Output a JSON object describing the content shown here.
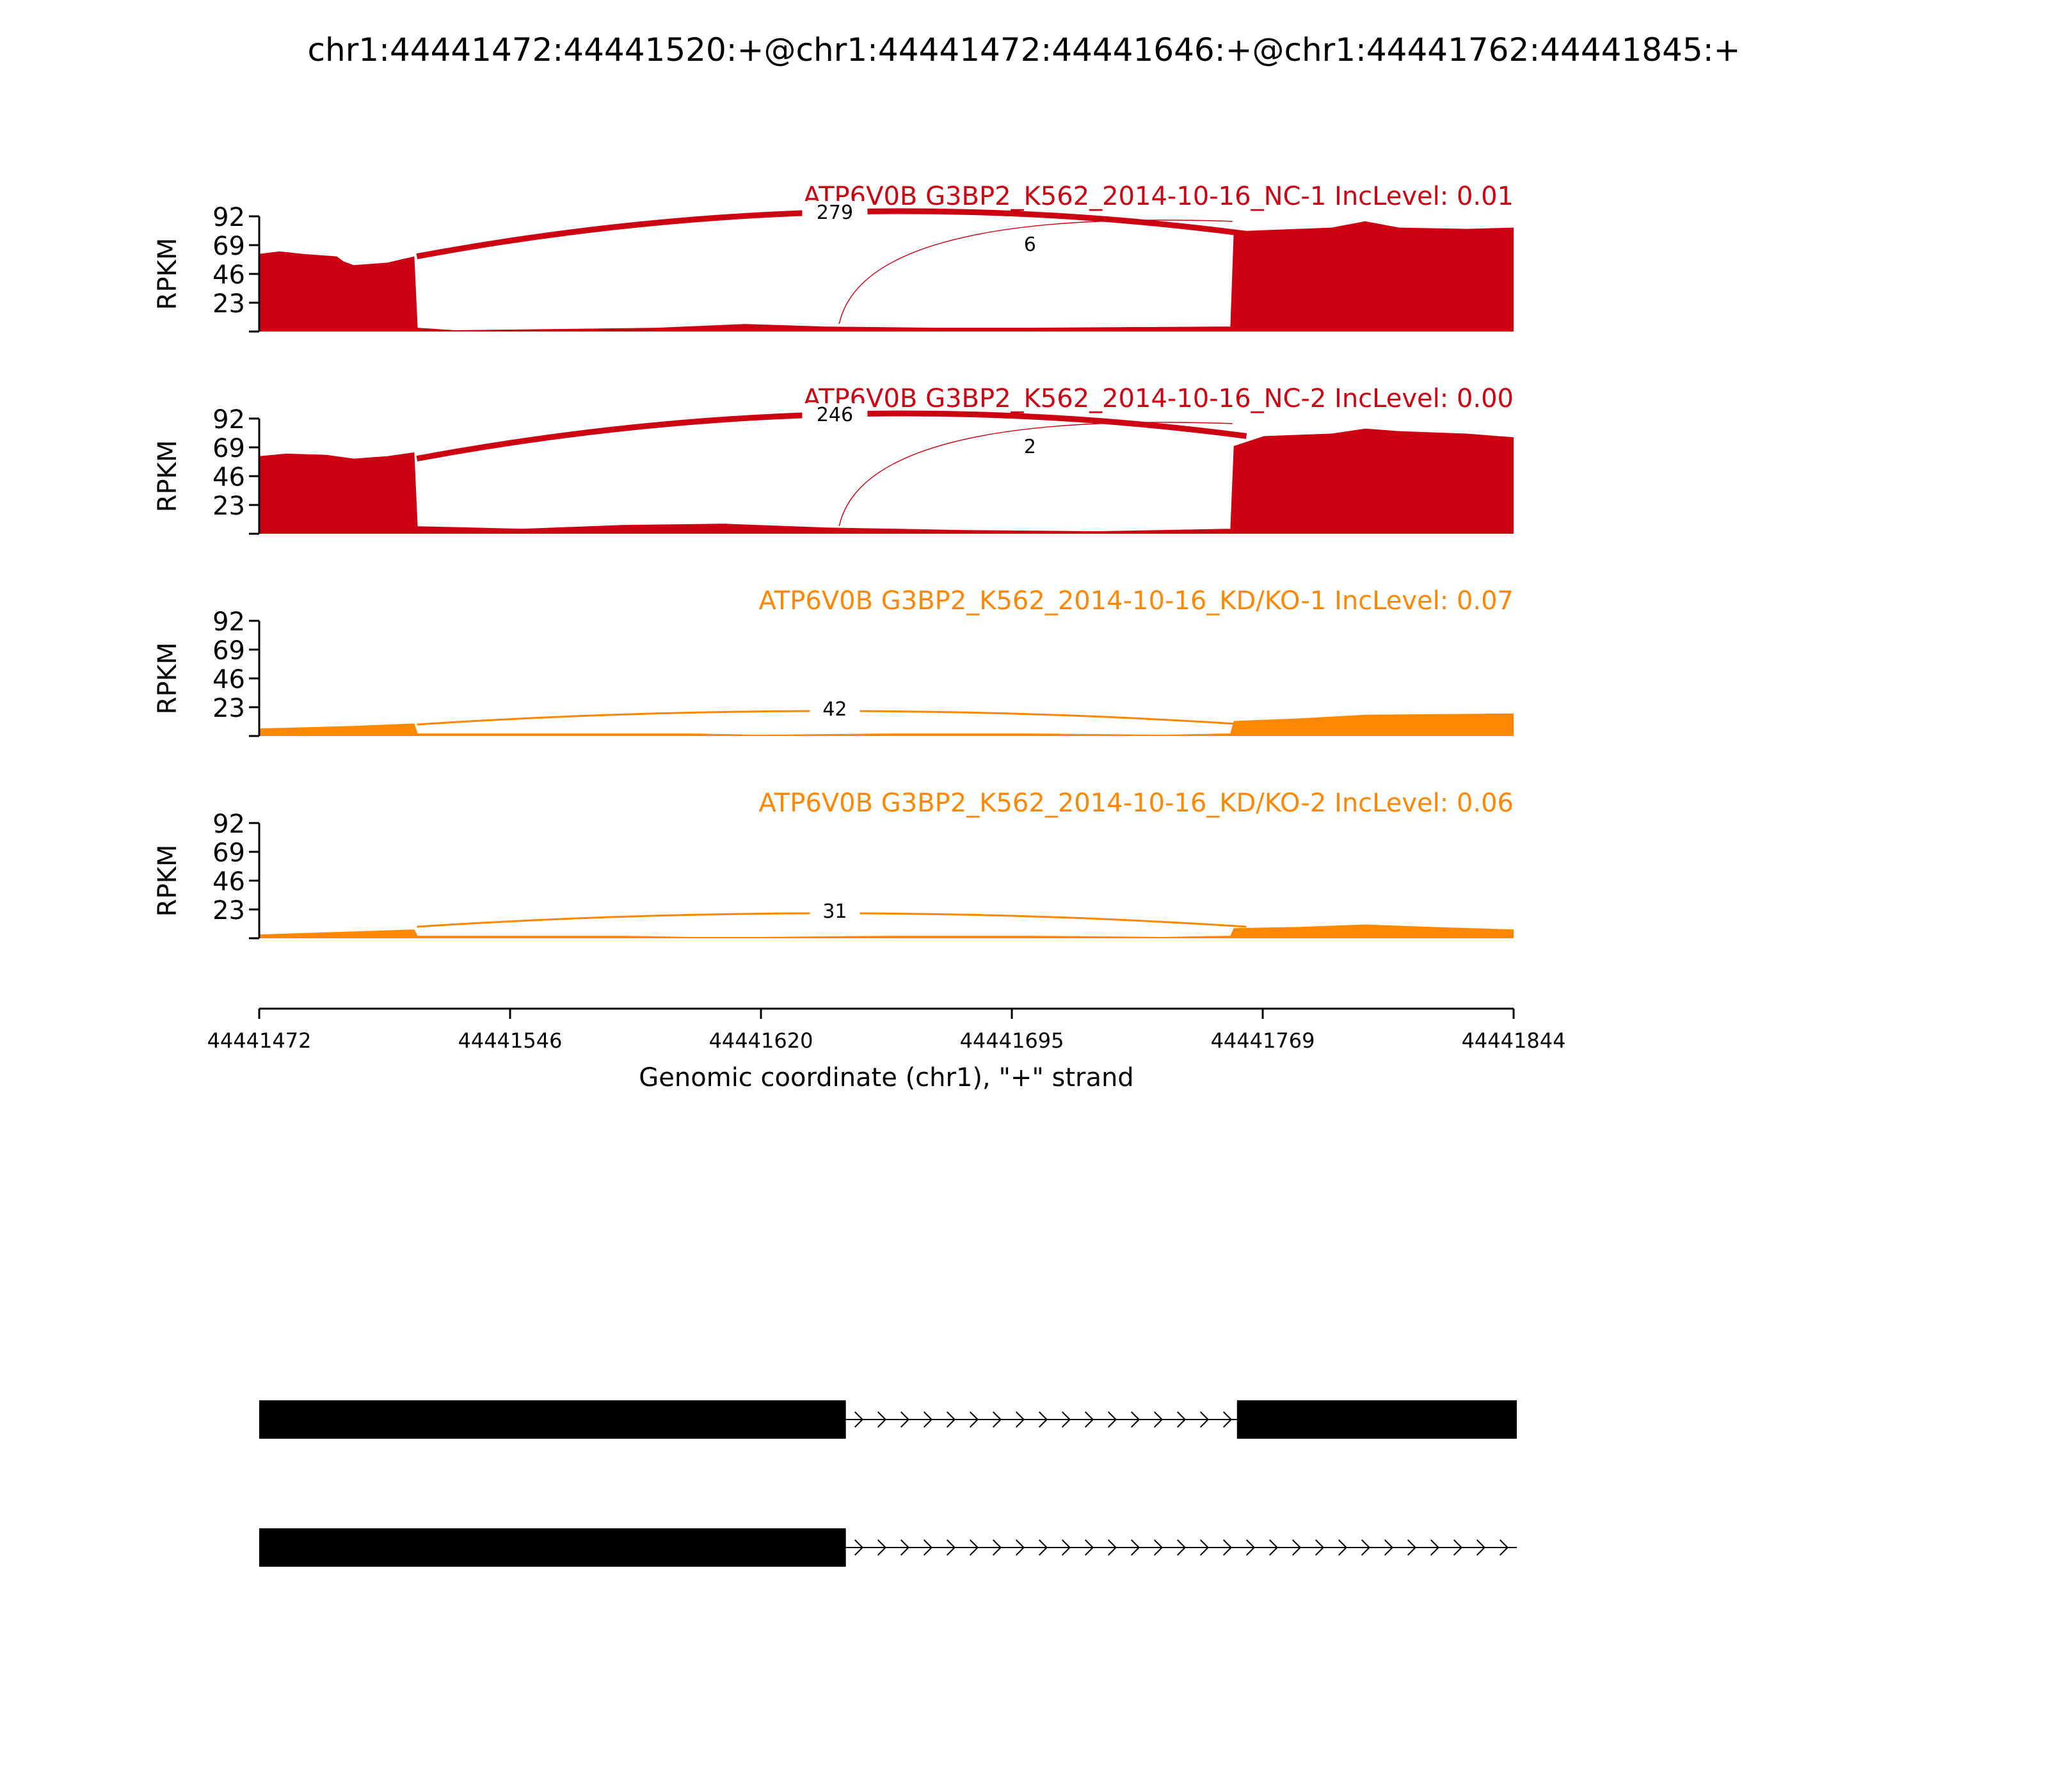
{
  "title": "chr1:44441472:44441520:+@chr1:44441472:44441646:+@chr1:44441762:44441845:+",
  "chart_data": {
    "type": "area",
    "subtype": "sashimi",
    "title": "chr1:44441472:44441520:+@chr1:44441472:44441646:+@chr1:44441762:44441845:+",
    "xlabel": "Genomic coordinate (chr1), \"+\" strand",
    "ylabel": "RPKM",
    "xlim": [
      44441472,
      44441844
    ],
    "x_ticks": [
      "44441472",
      "44441546",
      "44441620",
      "44441695",
      "44441769",
      "44441844"
    ],
    "y_ticks": [
      "23",
      "46",
      "69",
      "92"
    ],
    "ylim": [
      0,
      92
    ],
    "grid": false,
    "series": [
      {
        "name": "ATP6V0B G3BP2_K562_2014-10-16_NC-1 IncLevel: 0.01",
        "color": "#cc0011",
        "coverage": [
          [
            44441472,
            62
          ],
          [
            44441478,
            64
          ],
          [
            44441485,
            62
          ],
          [
            44441495,
            60
          ],
          [
            44441497,
            56
          ],
          [
            44441500,
            53
          ],
          [
            44441510,
            55
          ],
          [
            44441518,
            60
          ],
          [
            44441519,
            3
          ],
          [
            44441530,
            1
          ],
          [
            44441560,
            2
          ],
          [
            44441590,
            3
          ],
          [
            44441616,
            6
          ],
          [
            44441640,
            4
          ],
          [
            44441672,
            3
          ],
          [
            44441700,
            3
          ],
          [
            44441760,
            4
          ],
          [
            44441761,
            80
          ],
          [
            44441780,
            82
          ],
          [
            44441790,
            83
          ],
          [
            44441800,
            88
          ],
          [
            44441810,
            83
          ],
          [
            44441830,
            82
          ],
          [
            44441844,
            83
          ]
        ],
        "junctions": [
          {
            "start": 44441518,
            "end": 44441764,
            "reads": "279"
          },
          {
            "start": 44441644,
            "end": 44441761,
            "reads": "6"
          }
        ]
      },
      {
        "name": "ATP6V0B G3BP2_K562_2014-10-16_NC-2 IncLevel: 0.00",
        "color": "#cc0011",
        "coverage": [
          [
            44441472,
            62
          ],
          [
            44441480,
            64
          ],
          [
            44441492,
            63
          ],
          [
            44441500,
            60
          ],
          [
            44441510,
            62
          ],
          [
            44441518,
            65
          ],
          [
            44441519,
            6
          ],
          [
            44441550,
            4
          ],
          [
            44441580,
            7
          ],
          [
            44441610,
            8
          ],
          [
            44441640,
            5
          ],
          [
            44441680,
            3
          ],
          [
            44441720,
            2
          ],
          [
            44441760,
            4
          ],
          [
            44441761,
            70
          ],
          [
            44441770,
            78
          ],
          [
            44441790,
            80
          ],
          [
            44441800,
            84
          ],
          [
            44441810,
            82
          ],
          [
            44441830,
            80
          ],
          [
            44441844,
            77
          ]
        ],
        "junctions": [
          {
            "start": 44441518,
            "end": 44441764,
            "reads": "246"
          },
          {
            "start": 44441644,
            "end": 44441761,
            "reads": "2"
          }
        ]
      },
      {
        "name": "ATP6V0B G3BP2_K562_2014-10-16_KD/KO-1 IncLevel: 0.07",
        "color": "#ff8800",
        "coverage": [
          [
            44441472,
            6
          ],
          [
            44441500,
            8
          ],
          [
            44441518,
            10
          ],
          [
            44441519,
            2
          ],
          [
            44441560,
            2
          ],
          [
            44441600,
            2
          ],
          [
            44441620,
            1
          ],
          [
            44441660,
            2
          ],
          [
            44441700,
            2
          ],
          [
            44441740,
            1
          ],
          [
            44441760,
            2
          ],
          [
            44441761,
            12
          ],
          [
            44441780,
            14
          ],
          [
            44441800,
            17
          ],
          [
            44441844,
            18
          ]
        ],
        "junctions": [
          {
            "start": 44441518,
            "end": 44441764,
            "reads": "42"
          }
        ]
      },
      {
        "name": "ATP6V0B G3BP2_K562_2014-10-16_KD/KO-2 IncLevel: 0.06",
        "color": "#ff8800",
        "coverage": [
          [
            44441472,
            3
          ],
          [
            44441495,
            5
          ],
          [
            44441518,
            7
          ],
          [
            44441519,
            2
          ],
          [
            44441580,
            2
          ],
          [
            44441600,
            1
          ],
          [
            44441620,
            1
          ],
          [
            44441660,
            2
          ],
          [
            44441700,
            2
          ],
          [
            44441740,
            1
          ],
          [
            44441760,
            2
          ],
          [
            44441761,
            8
          ],
          [
            44441780,
            9
          ],
          [
            44441800,
            11
          ],
          [
            44441820,
            9
          ],
          [
            44441844,
            7
          ]
        ],
        "junctions": [
          {
            "start": 44441518,
            "end": 44441764,
            "reads": "31"
          }
        ]
      }
    ],
    "gene_models": [
      {
        "exons": [
          [
            44441472,
            44441646
          ],
          [
            44441762,
            44441845
          ]
        ],
        "intron_arrows": true
      },
      {
        "exons": [
          [
            44441472,
            44441646
          ]
        ],
        "line_to": 44441845,
        "intron_arrows": true
      }
    ]
  }
}
